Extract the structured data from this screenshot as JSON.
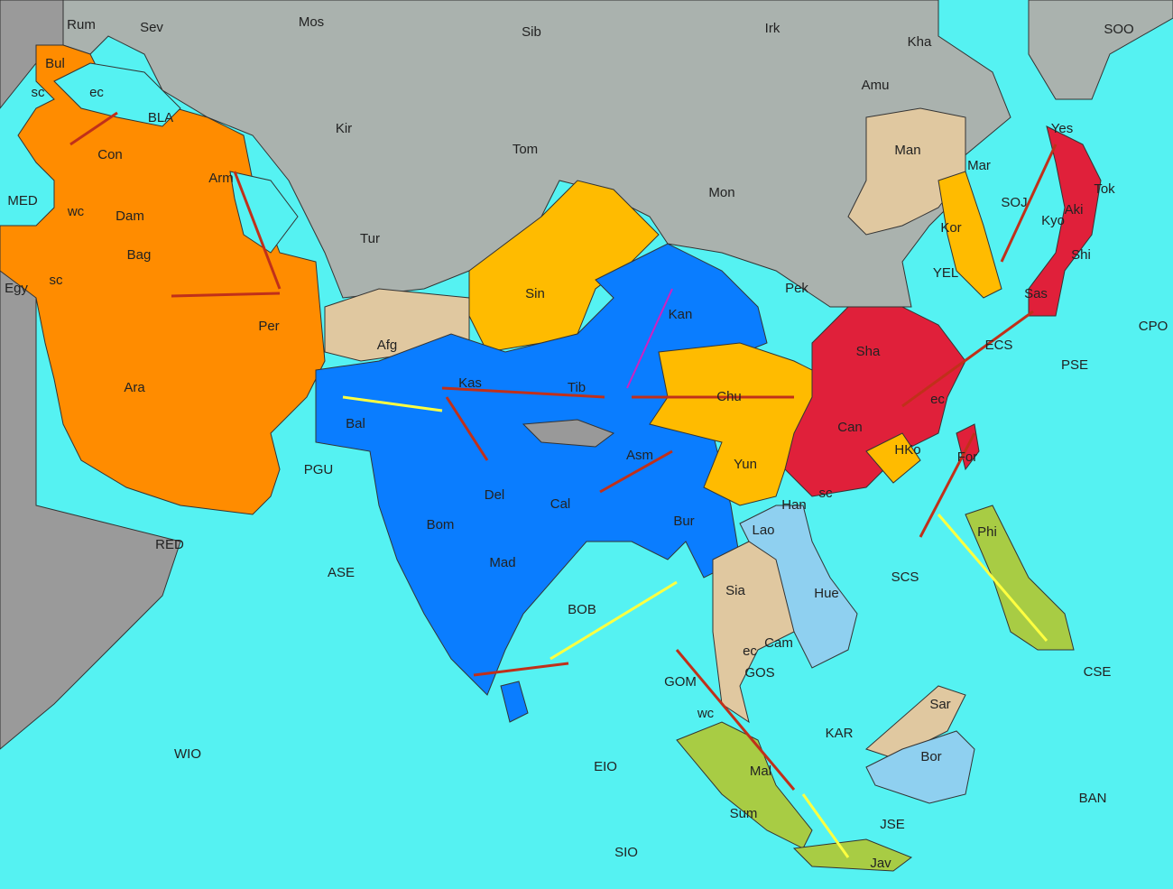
{
  "map": {
    "labels": [
      "Rum",
      "Sev",
      "Mos",
      "Sib",
      "Irk",
      "Kha",
      "SOO",
      "Bul",
      "sc",
      "ec",
      "BLA",
      "Con",
      "Kir",
      "Tom",
      "Amu",
      "Arm",
      "MED",
      "wc",
      "Dam",
      "Tur",
      "Mon",
      "Man",
      "Mar",
      "Yes",
      "Tok",
      "SOJ",
      "Kyo",
      "Aki",
      "Shi",
      "Bag",
      "sc",
      "Egy",
      "Per",
      "Sin",
      "Kan",
      "Pek",
      "Kor",
      "YEL",
      "Sas",
      "Afg",
      "Ara",
      "Sha",
      "ECS",
      "PSE",
      "CPO",
      "Kas",
      "Tib",
      "Chu",
      "ec",
      "Bal",
      "Can",
      "HKo",
      "For",
      "Yun",
      "sc",
      "PGU",
      "Asm",
      "Del",
      "Cal",
      "Bom",
      "Han",
      "Bur",
      "Lao",
      "RED",
      "ASE",
      "Mad",
      "Sia",
      "Hue",
      "SCS",
      "Phi",
      "BOB",
      "Cam",
      "ec",
      "GOS",
      "GOM",
      "wc",
      "KAR",
      "CSE",
      "Sar",
      "WIO",
      "EIO",
      "Mal",
      "Bor",
      "BAN",
      "Sum",
      "JSE",
      "SIO",
      "Jav"
    ]
  }
}
